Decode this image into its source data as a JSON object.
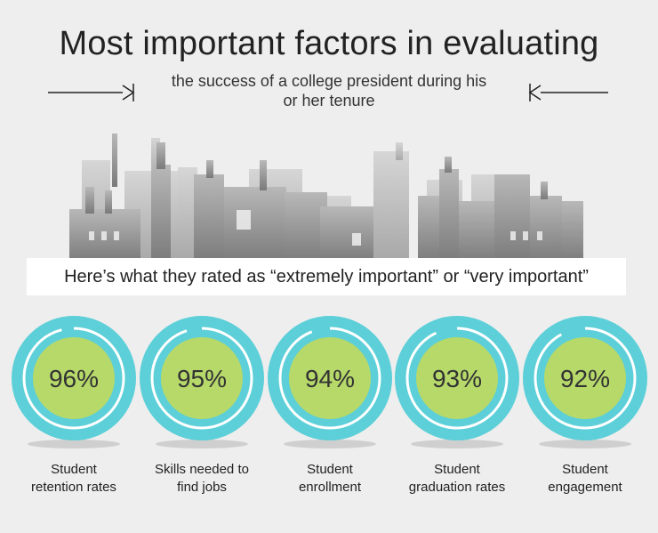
{
  "header": {
    "title": "Most important factors in evaluating",
    "subtitle_line1": "the success of a college president during his",
    "subtitle_line2": "or her tenure"
  },
  "banner": {
    "text": "Here’s what they rated as “extremely important” or “very important”"
  },
  "colors": {
    "ring": "#5ccfd8",
    "inner": "#b6d96a",
    "text": "#222222"
  },
  "chart_data": {
    "type": "donut",
    "categories": [
      "Student retention rates",
      "Skills needed to find jobs",
      "Student enrollment",
      "Student graduation rates",
      "Student engagement"
    ],
    "values": [
      96,
      95,
      94,
      93,
      92
    ],
    "value_labels": [
      "96%",
      "95%",
      "94%",
      "93%",
      "92%"
    ],
    "label_lines": [
      [
        "Student",
        "retention rates"
      ],
      [
        "Skills needed to",
        "find jobs"
      ],
      [
        "Student",
        "enrollment"
      ],
      [
        "Student",
        "graduation rates"
      ],
      [
        "Student",
        "engagement"
      ]
    ],
    "unit": "%",
    "max": 100
  }
}
